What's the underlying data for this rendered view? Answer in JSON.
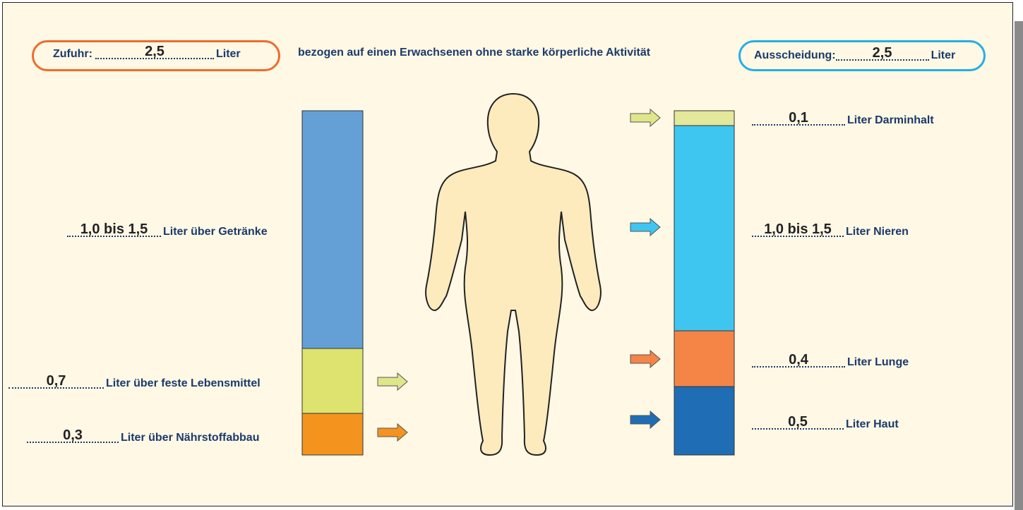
{
  "intake": {
    "label": "Zufuhr:",
    "amount": "2,5",
    "unit": "Liter"
  },
  "note": "bezogen auf einen Erwachsenen ohne starke körperliche Aktivität",
  "output": {
    "label": "Ausscheidung:",
    "amount": "2,5",
    "unit": "Liter"
  },
  "intake_items": [
    {
      "amount": "1,0 bis 1,5",
      "label": "Liter über Getränke"
    },
    {
      "amount": "0,7",
      "label": "Liter über feste Lebensmittel"
    },
    {
      "amount": "0,3",
      "label": "Liter über Nährstoffabbau"
    }
  ],
  "output_items": [
    {
      "amount": "0,1",
      "label": "Liter Darminhalt"
    },
    {
      "amount": "1,0 bis 1,5",
      "label": "Liter Nieren"
    },
    {
      "amount": "0,4",
      "label": "Liter Lunge"
    },
    {
      "amount": "0,5",
      "label": "Liter Haut"
    }
  ]
}
